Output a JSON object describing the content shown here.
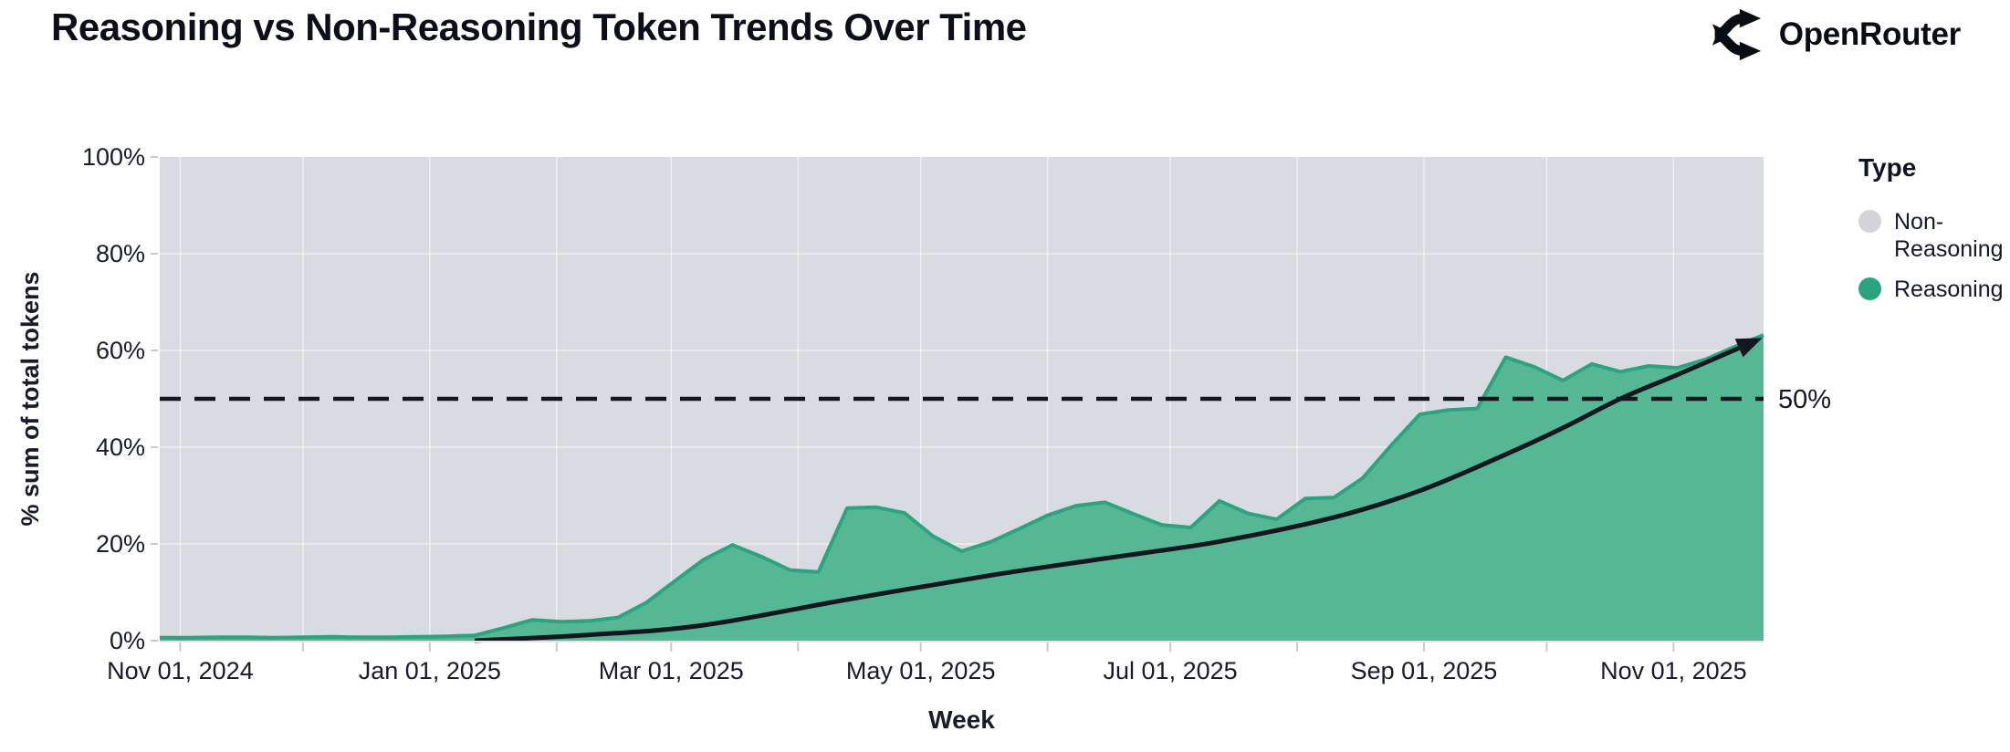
{
  "header": {
    "title": "Reasoning vs Non-Reasoning Token Trends Over Time",
    "brand": "OpenRouter"
  },
  "legend": {
    "title": "Type",
    "items": [
      {
        "label": "Non-Reasoning",
        "color": "#d2d4da"
      },
      {
        "label": "Reasoning",
        "color": "#2aa47e"
      }
    ]
  },
  "colors": {
    "plot_background": "#d8dbe2",
    "area_fill": "#56b795",
    "area_stroke": "#2da380",
    "gridline": "rgba(255,255,255,0.55)",
    "tick_mark": "#c7cad1",
    "ink": "#14171f",
    "label": "#181b28"
  },
  "chart_data": {
    "type": "area",
    "stacked": "100% stacked (Reasoning + Non-Reasoning = 100%)",
    "title": "Reasoning vs Non-Reasoning Token Trends Over Time",
    "xlabel": "Week",
    "ylabel": "% sum of total tokens",
    "ylim": [
      0,
      100
    ],
    "y_ticks": [
      {
        "v": 0,
        "label": "0%"
      },
      {
        "v": 20,
        "label": "20%"
      },
      {
        "v": 40,
        "label": "40%"
      },
      {
        "v": 60,
        "label": "60%"
      },
      {
        "v": 80,
        "label": "80%"
      },
      {
        "v": 100,
        "label": "100%"
      }
    ],
    "x_ticks": [
      {
        "date": "2024-11-01",
        "label": "Nov 01, 2024"
      },
      {
        "date": "2024-12-01"
      },
      {
        "date": "2025-01-01",
        "label": "Jan 01, 2025"
      },
      {
        "date": "2025-02-01"
      },
      {
        "date": "2025-03-01",
        "label": "Mar 01, 2025"
      },
      {
        "date": "2025-04-01"
      },
      {
        "date": "2025-05-01",
        "label": "May 01, 2025"
      },
      {
        "date": "2025-06-01"
      },
      {
        "date": "2025-07-01",
        "label": "Jul 01, 2025"
      },
      {
        "date": "2025-08-01"
      },
      {
        "date": "2025-09-01",
        "label": "Sep 01, 2025"
      },
      {
        "date": "2025-10-01"
      },
      {
        "date": "2025-11-01",
        "label": "Nov 01, 2025"
      }
    ],
    "annotation": {
      "label": "50%",
      "value": 50
    },
    "series": [
      {
        "name": "Reasoning",
        "role": "bottom",
        "color": "#56b795"
      },
      {
        "name": "Non-Reasoning",
        "role": "top",
        "color": "#d8dbe2"
      }
    ],
    "weeks": [
      "2024-10-27",
      "2024-11-03",
      "2024-11-10",
      "2024-11-17",
      "2024-11-24",
      "2024-12-01",
      "2024-12-08",
      "2024-12-15",
      "2024-12-22",
      "2024-12-29",
      "2025-01-05",
      "2025-01-12",
      "2025-01-19",
      "2025-01-26",
      "2025-02-02",
      "2025-02-09",
      "2025-02-16",
      "2025-02-23",
      "2025-03-02",
      "2025-03-09",
      "2025-03-16",
      "2025-03-23",
      "2025-03-30",
      "2025-04-06",
      "2025-04-13",
      "2025-04-20",
      "2025-04-27",
      "2025-05-04",
      "2025-05-11",
      "2025-05-18",
      "2025-05-25",
      "2025-06-01",
      "2025-06-08",
      "2025-06-15",
      "2025-06-22",
      "2025-06-29",
      "2025-07-06",
      "2025-07-13",
      "2025-07-20",
      "2025-07-27",
      "2025-08-03",
      "2025-08-10",
      "2025-08-17",
      "2025-08-24",
      "2025-08-31",
      "2025-09-07",
      "2025-09-14",
      "2025-09-21",
      "2025-09-28",
      "2025-10-05",
      "2025-10-12",
      "2025-10-19",
      "2025-10-26",
      "2025-11-02",
      "2025-11-09",
      "2025-11-16",
      "2025-11-23"
    ],
    "reasoning_pct": [
      0.6,
      0.6,
      0.7,
      0.7,
      0.6,
      0.7,
      0.8,
      0.7,
      0.7,
      0.8,
      0.9,
      1.1,
      2.6,
      4.3,
      3.9,
      4.1,
      4.8,
      7.9,
      12.4,
      16.8,
      19.8,
      17.4,
      14.6,
      14.2,
      27.4,
      27.6,
      26.4,
      21.6,
      18.5,
      20.4,
      23.1,
      25.9,
      27.9,
      28.6,
      26.2,
      23.9,
      23.4,
      28.9,
      26.3,
      25.1,
      29.4,
      29.6,
      33.6,
      40.4,
      46.8,
      47.7,
      48.0,
      58.6,
      56.6,
      53.8,
      57.2,
      55.6,
      56.8,
      56.4,
      58.2,
      60.8,
      63.2
    ],
    "trend_line": {
      "description": "black exponential trend arrow of reasoning share",
      "points": [
        [
          "2025-01-12",
          0
        ],
        [
          "2025-02-09",
          1.2
        ],
        [
          "2025-03-09",
          3.2
        ],
        [
          "2025-04-13",
          8.5
        ],
        [
          "2025-05-18",
          13.5
        ],
        [
          "2025-06-15",
          17
        ],
        [
          "2025-07-13",
          20.5
        ],
        [
          "2025-08-10",
          25.5
        ],
        [
          "2025-08-31",
          31
        ],
        [
          "2025-09-21",
          38.5
        ],
        [
          "2025-10-05",
          44
        ],
        [
          "2025-10-19",
          50
        ],
        [
          "2025-11-02",
          55
        ],
        [
          "2025-11-17",
          60.5
        ]
      ]
    }
  }
}
